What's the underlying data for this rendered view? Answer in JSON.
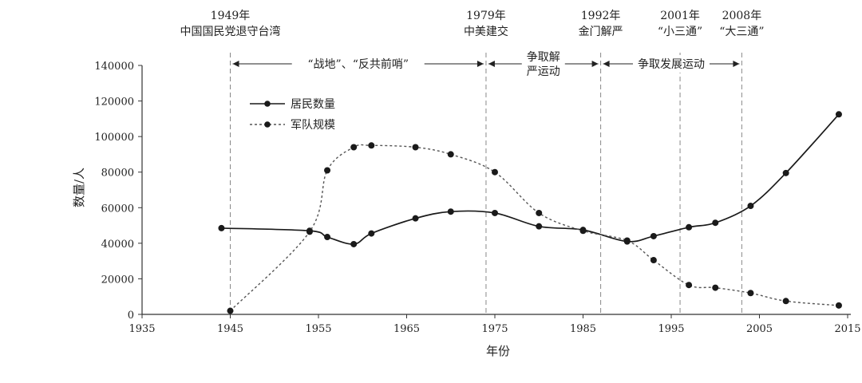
{
  "chart_data": {
    "type": "line",
    "xlabel": "年份",
    "ylabel": "数量/人",
    "xlim": [
      1935,
      2015
    ],
    "ylim": [
      0,
      140000
    ],
    "x_ticks": [
      "1935",
      "1945",
      "1955",
      "1965",
      "1975",
      "1985",
      "1995",
      "2005",
      "2015"
    ],
    "y_ticks": [
      "0",
      "20000",
      "40000",
      "60000",
      "80000",
      "100000",
      "120000",
      "140000"
    ],
    "series": [
      {
        "name": "居民数量",
        "style": "solid",
        "points": [
          [
            1944,
            48500
          ],
          [
            1954,
            47000
          ],
          [
            1956,
            43500
          ],
          [
            1959,
            39500
          ],
          [
            1961,
            45500
          ],
          [
            1966,
            54000
          ],
          [
            1970,
            57800
          ],
          [
            1975,
            57000
          ],
          [
            1980,
            49500
          ],
          [
            1985,
            47500
          ],
          [
            1990,
            41000
          ],
          [
            1993,
            44000
          ],
          [
            1997,
            49000
          ],
          [
            2000,
            51500
          ],
          [
            2004,
            61000
          ],
          [
            2008,
            79500
          ],
          [
            2014,
            112500
          ]
        ]
      },
      {
        "name": "军队规模",
        "style": "dashed",
        "points": [
          [
            1945,
            2000
          ],
          [
            1954,
            46500
          ],
          [
            1956,
            81000
          ],
          [
            1959,
            94000
          ],
          [
            1961,
            95000
          ],
          [
            1966,
            94000
          ],
          [
            1970,
            90000
          ],
          [
            1975,
            80000
          ],
          [
            1980,
            57000
          ],
          [
            1985,
            47000
          ],
          [
            1990,
            41500
          ],
          [
            1993,
            30500
          ],
          [
            1997,
            16500
          ],
          [
            2000,
            15000
          ],
          [
            2004,
            12000
          ],
          [
            2008,
            7500
          ],
          [
            2014,
            5000
          ]
        ]
      }
    ],
    "events": [
      {
        "year": 1945,
        "line1": "1949年",
        "line2": "中国国民党退守台湾"
      },
      {
        "year": 1974,
        "line1": "1979年",
        "line2": "中美建交"
      },
      {
        "year": 1987,
        "line1": "1992年",
        "line2": "金门解严"
      },
      {
        "year": 1996,
        "line1": "2001年",
        "line2": "“小三通”"
      },
      {
        "year": 2003,
        "line1": "2008年",
        "line2": "“大三通”"
      }
    ],
    "periods": [
      {
        "from": 1945,
        "to": 1974,
        "lines": [
          "“战地”、“反共前哨”"
        ]
      },
      {
        "from": 1974,
        "to": 1987,
        "lines": [
          "争取解",
          "严运动"
        ]
      },
      {
        "from": 1987,
        "to": 2003,
        "lines": [
          "争取发展运动"
        ]
      }
    ],
    "legend_position": "top-left"
  },
  "colors": {
    "line": "#1a1a1a",
    "dashed_line": "#555555",
    "axis": "#333333",
    "event_line": "#888888",
    "marker": "#1a1a1a"
  }
}
